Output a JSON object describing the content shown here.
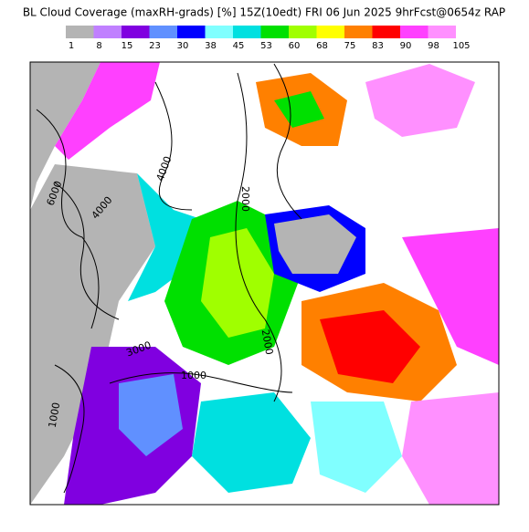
{
  "header": {
    "title": "BL Cloud Coverage (maxRH-grads) [%] 15Z(10edt) FRI 06 Jun 2025 9hrFcst@0654z RAP"
  },
  "colorbar": {
    "labels": [
      1,
      8,
      15,
      23,
      30,
      38,
      45,
      53,
      60,
      68,
      75,
      83,
      90,
      98,
      105
    ],
    "colors": [
      "#b4b4b4",
      "#c080ff",
      "#8000e0",
      "#6090ff",
      "#0000ff",
      "#80ffff",
      "#00e0e0",
      "#00e000",
      "#a0ff00",
      "#ffff00",
      "#ff8000",
      "#ff0000",
      "#ff40ff",
      "#ff90ff"
    ]
  },
  "map": {
    "contour_labels": [
      "6000",
      "4000",
      "4000",
      "2000",
      "2000",
      "3000",
      "1000",
      "1000"
    ]
  }
}
